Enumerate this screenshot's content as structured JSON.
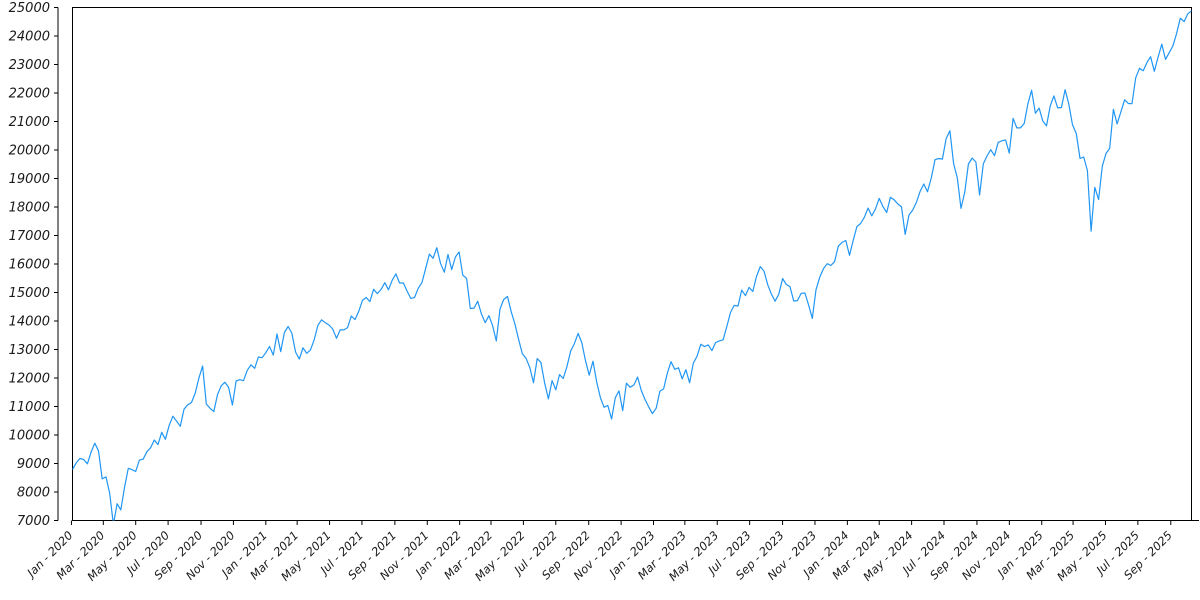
{
  "figure": {
    "background": "#ffffff"
  },
  "chart_data": {
    "type": "line",
    "title": "",
    "xlabel": "",
    "ylabel": "",
    "legend": "none",
    "grid": false,
    "x_tick_rotation_deg": 45,
    "line_color": "#2196f3",
    "axis_color": "#000000",
    "tick_label_color": "#1a1a1a",
    "tick_label_style": "italic",
    "ylim": [
      7000,
      25000
    ],
    "y_ticks": [
      7000,
      8000,
      9000,
      10000,
      11000,
      12000,
      13000,
      14000,
      15000,
      16000,
      17000,
      18000,
      19000,
      20000,
      21000,
      22000,
      23000,
      24000,
      25000
    ],
    "x_start_date": "2020-01-03",
    "x_interval_days": 7,
    "x_end_date": "2025-10-10",
    "x_tick_labels": [
      "Jan - 2020",
      "Mar - 2020",
      "May - 2020",
      "Jul - 2020",
      "Sep - 2020",
      "Nov - 2020",
      "Jan - 2021",
      "Mar - 2021",
      "May - 2021",
      "Jul - 2021",
      "Sep - 2021",
      "Nov - 2021",
      "Jan - 2022",
      "Mar - 2022",
      "May - 2022",
      "Jul - 2022",
      "Sep - 2022",
      "Nov - 2022",
      "Jan - 2023",
      "Mar - 2023",
      "May - 2023",
      "Jul - 2023",
      "Sep - 2023",
      "Nov - 2023",
      "Jan - 2024",
      "Mar - 2024",
      "May - 2024",
      "Jul - 2024",
      "Sep - 2024",
      "Nov - 2024",
      "Jan - 2025",
      "Mar - 2025",
      "May - 2025",
      "Jul - 2025",
      "Sep - 2025"
    ],
    "values": [
      8793,
      9021,
      9174,
      9141,
      8991,
      9401,
      9711,
      9446,
      8461,
      8530,
      7950,
      6860,
      7588,
      7373,
      8153,
      8832,
      8786,
      8718,
      9121,
      9152,
      9413,
      9556,
      9824,
      9663,
      10094,
      9849,
      10342,
      10661,
      10483,
      10306,
      10906,
      11055,
      11139,
      11466,
      11996,
      12420,
      11087,
      10937,
      10820,
      11418,
      11726,
      11852,
      11669,
      11053,
      11895,
      11939,
      11906,
      12268,
      12464,
      12339,
      12738,
      12711,
      12888,
      13106,
      12804,
      13543,
      12925,
      13598,
      13807,
      13580,
      12909,
      12668,
      13060,
      12867,
      12979,
      13330,
      13845,
      14041,
      13941,
      13860,
      13719,
      13393,
      13687,
      13686,
      13770,
      14174,
      14049,
      14345,
      14727,
      14826,
      14681,
      15112,
      14960,
      15108,
      15345,
      15093,
      15432,
      15652,
      15333,
      15334,
      15048,
      14792,
      14821,
      15147,
      15355,
      15850,
      16346,
      16199,
      16573,
      16025,
      15712,
      16332,
      15802,
      16246,
      16420,
      15608,
      15498,
      14438,
      14454,
      14694,
      14253,
      13940,
      14189,
      13837,
      13301,
      14420,
      14754,
      14861,
      14328,
      13893,
      13357,
      12855,
      12693,
      12368,
      11835,
      12681,
      12548,
      11833,
      11265,
      11908,
      11586,
      12120,
      11984,
      12397,
      12948,
      13207,
      13566,
      13243,
      12606,
      12098,
      12588,
      11861,
      11311,
      10971,
      11039,
      10560,
      11310,
      11546,
      10857,
      11817,
      11677,
      11756,
      12030,
      11563,
      11244,
      10985,
      10750,
      10939,
      11541,
      11619,
      12166,
      12573,
      12305,
      12358,
      11969,
      12291,
      11830,
      12520,
      12767,
      13181,
      13100,
      13161,
      12963,
      13245,
      13301,
      13340,
      13803,
      14298,
      14547,
      14528,
      15083,
      14891,
      15179,
      15036,
      15565,
      15910,
      15750,
      15274,
      14945,
      14694,
      14942,
      15491,
      15280,
      15202,
      14702,
      14715,
      14973,
      14982,
      14561,
      14090,
      15099,
      15529,
      15837,
      16010,
      15947,
      16085,
      16623,
      16757,
      16825,
      16306,
      16831,
      17314,
      17421,
      17642,
      17962,
      17686,
      17937,
      18303,
      18018,
      17808,
      18339,
      18254,
      18108,
      18003,
      17037,
      17718,
      17890,
      18161,
      18546,
      18808,
      18536,
      19021,
      19660,
      19700,
      19682,
      20392,
      20675,
      19523,
      19024,
      17950,
      18513,
      19509,
      19721,
      19574,
      18421,
      19514,
      19791,
      20009,
      19800,
      20271,
      20324,
      20352,
      19890,
      21114,
      20776,
      20777,
      20930,
      21622,
      22096,
      21289,
      21470,
      21017,
      20847,
      21541,
      21900,
      21478,
      21491,
      22115,
      21614,
      20884,
      20577,
      19704,
      19753,
      19281,
      17150,
      18690,
      18258,
      19432,
      19878,
      20061,
      21427,
      20916,
      21341,
      21763,
      21631,
      21626,
      22534,
      22867,
      22780,
      23065,
      23272,
      22763,
      23250,
      23712,
      23180,
      23415,
      23652,
      24092,
      24626,
      24504,
      24780,
      24880
    ]
  }
}
